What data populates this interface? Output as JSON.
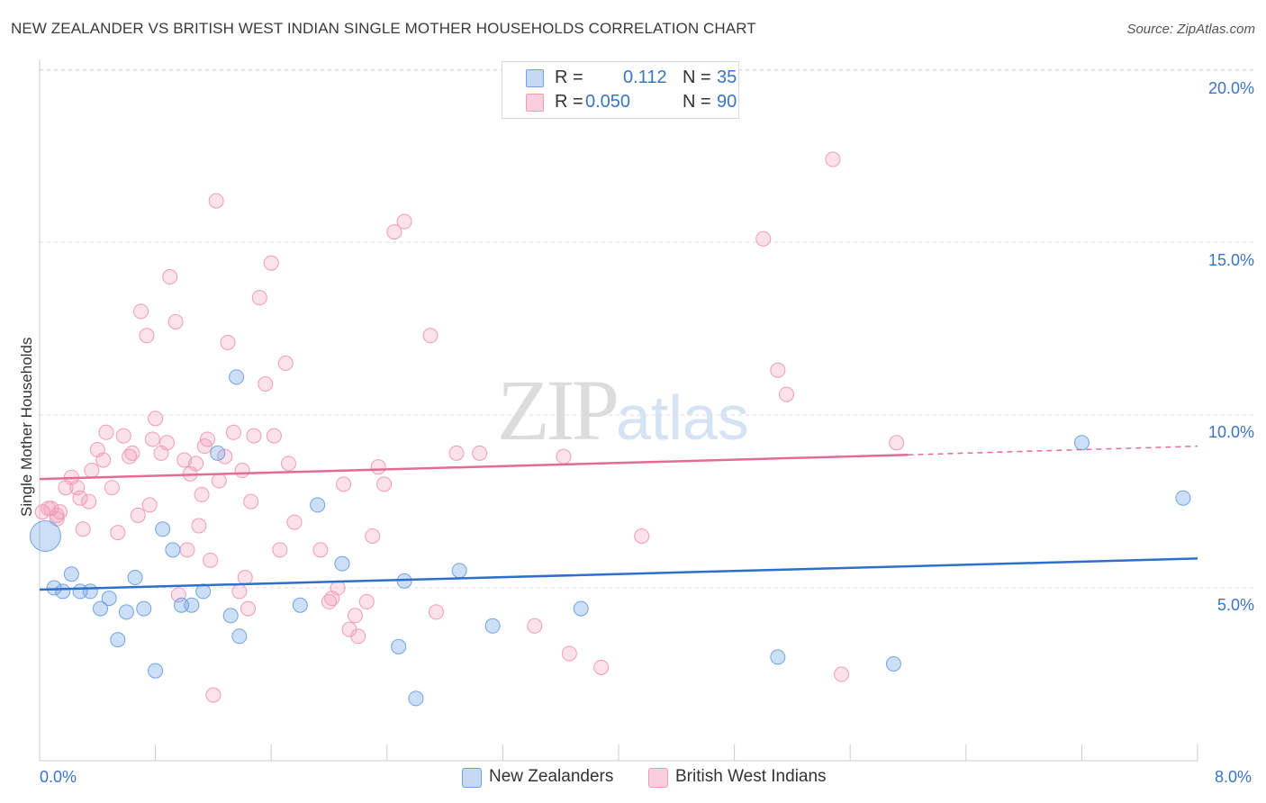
{
  "header": {
    "title": "NEW ZEALANDER VS BRITISH WEST INDIAN SINGLE MOTHER HOUSEHOLDS CORRELATION CHART",
    "source": "Source: ZipAtlas.com"
  },
  "watermark": {
    "zip": "ZIP",
    "atlas": "atlas"
  },
  "stats_legend": [
    {
      "r_label": "R =",
      "r_value": "0.112",
      "n_label": "N =",
      "n_value": "35",
      "color": "#6fa3e6"
    },
    {
      "r_label": "R =",
      "r_value": "0.050",
      "n_label": "N =",
      "n_value": "90",
      "color": "#f19bb8"
    }
  ],
  "legend": {
    "items": [
      {
        "label": "New Zealanders",
        "color": "#6fa3e6"
      },
      {
        "label": "British West Indians",
        "color": "#f19bb8"
      }
    ]
  },
  "axes": {
    "ylabel": "Single Mother Households",
    "x_min_label": "0.0%",
    "x_max_label": "8.0%",
    "y_ticks": [
      "5.0%",
      "10.0%",
      "15.0%",
      "20.0%"
    ]
  },
  "chart_data": {
    "type": "scatter",
    "title": "NEW ZEALANDER VS BRITISH WEST INDIAN SINGLE MOTHER HOUSEHOLDS CORRELATION CHART",
    "xlabel": "",
    "ylabel": "Single Mother Households",
    "xlim": [
      0,
      8.0
    ],
    "ylim": [
      0,
      20.5
    ],
    "x_unit": "%",
    "y_unit": "%",
    "grid": "horizontal dashed",
    "series": [
      {
        "name": "New Zealanders",
        "color": "#6fa3e6",
        "trend": {
          "x": [
            0,
            8.0
          ],
          "y": [
            4.95,
            5.85
          ]
        },
        "points": [
          [
            0.04,
            6.5
          ],
          [
            0.1,
            5.0
          ],
          [
            0.16,
            4.9
          ],
          [
            0.22,
            5.4
          ],
          [
            0.28,
            4.9
          ],
          [
            0.35,
            4.9
          ],
          [
            0.42,
            4.4
          ],
          [
            0.48,
            4.7
          ],
          [
            0.54,
            3.5
          ],
          [
            0.6,
            4.3
          ],
          [
            0.66,
            5.3
          ],
          [
            0.72,
            4.4
          ],
          [
            0.8,
            2.6
          ],
          [
            0.85,
            6.7
          ],
          [
            0.92,
            6.1
          ],
          [
            0.98,
            4.5
          ],
          [
            1.05,
            4.5
          ],
          [
            1.13,
            4.9
          ],
          [
            1.23,
            8.9
          ],
          [
            1.32,
            4.2
          ],
          [
            1.36,
            11.1
          ],
          [
            1.38,
            3.6
          ],
          [
            1.8,
            4.5
          ],
          [
            1.92,
            7.4
          ],
          [
            2.09,
            5.7
          ],
          [
            2.48,
            3.3
          ],
          [
            2.52,
            5.2
          ],
          [
            2.6,
            1.8
          ],
          [
            2.9,
            5.5
          ],
          [
            3.13,
            3.9
          ],
          [
            3.74,
            4.4
          ],
          [
            5.1,
            3.0
          ],
          [
            5.9,
            2.8
          ],
          [
            7.2,
            9.2
          ],
          [
            7.9,
            7.6
          ]
        ]
      },
      {
        "name": "British West Indians",
        "color": "#f19bb8",
        "trend": {
          "x": [
            0,
            6.0
          ],
          "y": [
            8.15,
            8.85
          ]
        },
        "trend_dashed": {
          "x": [
            6.0,
            8.0
          ],
          "y": [
            8.85,
            9.1
          ]
        },
        "points": [
          [
            0.02,
            7.2
          ],
          [
            0.08,
            7.3
          ],
          [
            0.12,
            7.1
          ],
          [
            0.14,
            7.2
          ],
          [
            0.18,
            7.9
          ],
          [
            0.22,
            8.2
          ],
          [
            0.26,
            7.9
          ],
          [
            0.28,
            7.6
          ],
          [
            0.3,
            6.7
          ],
          [
            0.34,
            7.5
          ],
          [
            0.36,
            8.4
          ],
          [
            0.4,
            9.0
          ],
          [
            0.44,
            8.7
          ],
          [
            0.46,
            9.5
          ],
          [
            0.5,
            7.9
          ],
          [
            0.54,
            6.6
          ],
          [
            0.58,
            9.4
          ],
          [
            0.62,
            8.8
          ],
          [
            0.64,
            8.9
          ],
          [
            0.68,
            7.1
          ],
          [
            0.7,
            13.0
          ],
          [
            0.74,
            12.3
          ],
          [
            0.76,
            7.4
          ],
          [
            0.78,
            9.3
          ],
          [
            0.8,
            9.9
          ],
          [
            0.84,
            8.9
          ],
          [
            0.88,
            9.2
          ],
          [
            0.9,
            14.0
          ],
          [
            0.94,
            12.7
          ],
          [
            0.96,
            4.8
          ],
          [
            1.0,
            8.7
          ],
          [
            1.02,
            6.1
          ],
          [
            1.04,
            8.3
          ],
          [
            1.08,
            8.6
          ],
          [
            1.1,
            6.8
          ],
          [
            1.12,
            7.7
          ],
          [
            1.14,
            9.1
          ],
          [
            1.16,
            9.3
          ],
          [
            1.18,
            5.8
          ],
          [
            1.2,
            1.9
          ],
          [
            1.22,
            16.2
          ],
          [
            1.24,
            8.1
          ],
          [
            1.28,
            8.8
          ],
          [
            1.3,
            12.1
          ],
          [
            1.34,
            9.5
          ],
          [
            1.38,
            4.9
          ],
          [
            1.4,
            8.4
          ],
          [
            1.42,
            5.3
          ],
          [
            1.44,
            4.4
          ],
          [
            1.46,
            7.5
          ],
          [
            1.48,
            9.4
          ],
          [
            1.52,
            13.4
          ],
          [
            1.56,
            10.9
          ],
          [
            1.6,
            14.4
          ],
          [
            1.62,
            9.4
          ],
          [
            1.66,
            6.1
          ],
          [
            1.7,
            11.5
          ],
          [
            1.72,
            8.6
          ],
          [
            1.76,
            6.9
          ],
          [
            1.94,
            6.1
          ],
          [
            2.0,
            4.6
          ],
          [
            2.02,
            4.7
          ],
          [
            2.06,
            5.0
          ],
          [
            2.1,
            8.0
          ],
          [
            2.14,
            3.8
          ],
          [
            2.18,
            4.2
          ],
          [
            2.2,
            3.6
          ],
          [
            2.26,
            4.6
          ],
          [
            2.3,
            6.5
          ],
          [
            2.34,
            8.5
          ],
          [
            2.38,
            8.0
          ],
          [
            2.45,
            15.3
          ],
          [
            2.52,
            15.6
          ],
          [
            2.7,
            12.3
          ],
          [
            2.74,
            4.3
          ],
          [
            2.88,
            8.9
          ],
          [
            3.04,
            8.9
          ],
          [
            3.42,
            3.9
          ],
          [
            3.62,
            8.8
          ],
          [
            3.66,
            3.1
          ],
          [
            3.88,
            2.7
          ],
          [
            4.16,
            6.5
          ],
          [
            5.0,
            15.1
          ],
          [
            5.1,
            11.3
          ],
          [
            5.16,
            10.6
          ],
          [
            5.48,
            17.4
          ],
          [
            5.54,
            2.5
          ],
          [
            5.92,
            9.2
          ],
          [
            0.06,
            7.3
          ],
          [
            0.12,
            7.0
          ]
        ]
      }
    ]
  }
}
